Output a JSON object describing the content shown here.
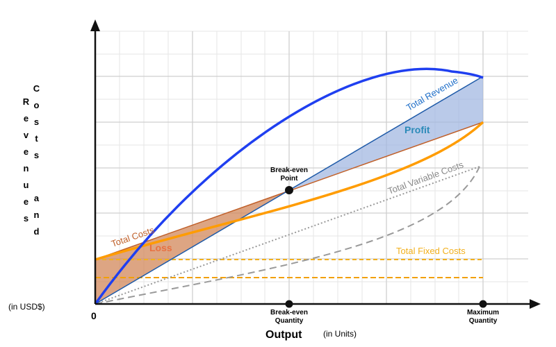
{
  "y_axis": {
    "label": "Costs and Revenues",
    "unit": "(in USD$)"
  },
  "x_axis": {
    "origin": "0",
    "label": "Output",
    "unit": "(in Units)",
    "break_even_quantity": "Break-even Quantity",
    "maximum_quantity": "Maximum Quantity"
  },
  "annotations": {
    "total_revenue": "Total Revenue",
    "profit": "Profit",
    "break_even_point": "Break-even Point",
    "total_variable_costs": "Total Variable Costs",
    "total_costs": "Total Costs",
    "loss": "Loss",
    "total_fixed_costs": "Total Fixed Costs"
  }
}
